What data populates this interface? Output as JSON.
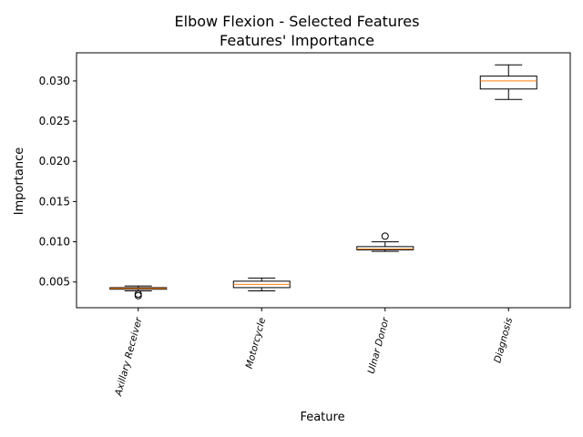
{
  "chart_data": {
    "type": "box",
    "title_line1": "Elbow Flexion - Selected Features",
    "title_line2": "Features' Importance",
    "xlabel": "Feature",
    "ylabel": "Importance",
    "ylim": [
      0.0018,
      0.0335
    ],
    "yticks": [
      "0.005",
      "0.010",
      "0.015",
      "0.020",
      "0.025",
      "0.030"
    ],
    "ytick_values": [
      0.005,
      0.01,
      0.015,
      0.02,
      0.025,
      0.03
    ],
    "categories": [
      "Axillary Receiver",
      "Motorcycle",
      "Ulnar Donor",
      "Diagnosis"
    ],
    "boxes": [
      {
        "whislo": 0.0039,
        "q1": 0.0041,
        "med": 0.0042,
        "q3": 0.0043,
        "whishi": 0.0045,
        "fliers": [
          0.0035,
          0.0033
        ]
      },
      {
        "whislo": 0.0039,
        "q1": 0.0043,
        "med": 0.0047,
        "q3": 0.0051,
        "whishi": 0.0055,
        "fliers": []
      },
      {
        "whislo": 0.0088,
        "q1": 0.009,
        "med": 0.0091,
        "q3": 0.0094,
        "whishi": 0.01,
        "fliers": [
          0.0107
        ]
      },
      {
        "whislo": 0.0277,
        "q1": 0.029,
        "med": 0.03,
        "q3": 0.0306,
        "whishi": 0.032,
        "fliers": []
      }
    ],
    "grid": false,
    "colors": {
      "box": "#000000",
      "median": "#ff7f0e",
      "flier": "#000000"
    }
  }
}
